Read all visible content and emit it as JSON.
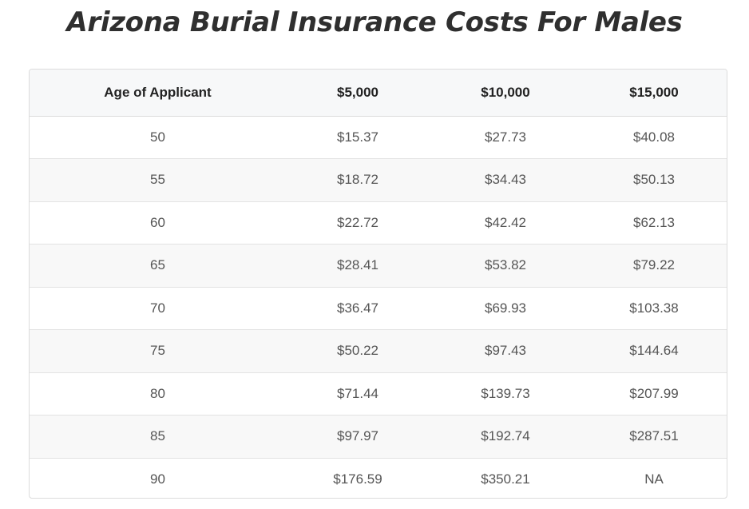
{
  "title": "Arizona Burial Insurance Costs For Males",
  "table": {
    "headers": [
      "Age of Applicant",
      "$5,000",
      "$10,000",
      "$15,000"
    ],
    "rows": [
      [
        "50",
        "$15.37",
        "$27.73",
        "$40.08"
      ],
      [
        "55",
        "$18.72",
        "$34.43",
        "$50.13"
      ],
      [
        "60",
        "$22.72",
        "$42.42",
        "$62.13"
      ],
      [
        "65",
        "$28.41",
        "$53.82",
        "$79.22"
      ],
      [
        "70",
        "$36.47",
        "$69.93",
        "$103.38"
      ],
      [
        "75",
        "$50.22",
        "$97.43",
        "$144.64"
      ],
      [
        "80",
        "$71.44",
        "$139.73",
        "$207.99"
      ],
      [
        "85",
        "$97.97",
        "$192.74",
        "$287.51"
      ],
      [
        "90",
        "$176.59",
        "$350.21",
        "NA"
      ]
    ]
  }
}
